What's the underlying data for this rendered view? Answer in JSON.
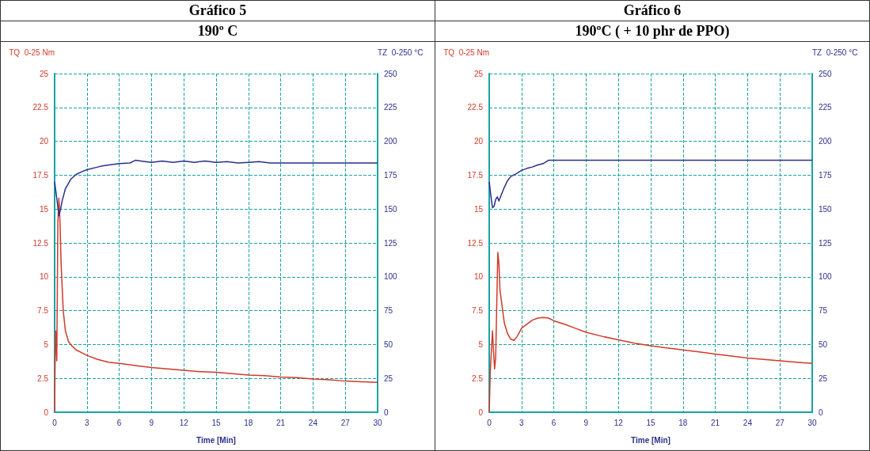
{
  "chart_data": [
    {
      "type": "line",
      "title": "Gráfico 5",
      "subtitle": "190º C",
      "xlabel": "Time [Min]",
      "ylabel": "TQ  0-25 Nm",
      "y2label": "TZ  0-250 °C",
      "xlim": [
        0,
        30
      ],
      "xticks": [
        0,
        3,
        6,
        9,
        12,
        15,
        18,
        21,
        24,
        27,
        30
      ],
      "ylim": [
        0,
        25
      ],
      "yticks": [
        0,
        2.5,
        5,
        7.5,
        10,
        12.5,
        15,
        17.5,
        20,
        22.5,
        25
      ],
      "y2lim": [
        0,
        250
      ],
      "y2ticks": [
        0,
        25,
        50,
        75,
        100,
        125,
        150,
        175,
        200,
        225,
        250
      ],
      "grid": true,
      "marker": "none",
      "line_style": "solid",
      "series": [
        {
          "color": "#d03a2a",
          "x": [
            0,
            0.05,
            0.1,
            0.2,
            0.3,
            0.4,
            0.5,
            0.6,
            0.8,
            1,
            1.3,
            1.6,
            2,
            2.5,
            3,
            4,
            5,
            6,
            7.5,
            9,
            10.5,
            12,
            13.5,
            15,
            16.5,
            18,
            19.5,
            21,
            22.5,
            24,
            25.5,
            27,
            28.5,
            30
          ],
          "values": [
            0,
            4,
            6,
            3.8,
            14,
            15.8,
            14,
            11,
            7.5,
            6,
            5.2,
            4.9,
            4.6,
            4.4,
            4.2,
            3.9,
            3.7,
            3.6,
            3.45,
            3.3,
            3.2,
            3.1,
            3.0,
            2.95,
            2.85,
            2.75,
            2.7,
            2.6,
            2.55,
            2.45,
            2.4,
            2.3,
            2.25,
            2.2
          ]
        },
        {
          "color": "#2a2f8a",
          "axis": "y2",
          "x": [
            0,
            0.2,
            0.4,
            0.5,
            0.7,
            1,
            1.5,
            2,
            2.5,
            3,
            4,
            4.5,
            6,
            7,
            7.5,
            8,
            9,
            10,
            11,
            12,
            13,
            14,
            15,
            16,
            17,
            18,
            19,
            20,
            22,
            25,
            30
          ],
          "values": [
            170,
            158,
            145,
            148,
            156,
            165,
            172,
            175.5,
            177.5,
            179,
            181,
            182,
            183.5,
            184,
            186,
            185.5,
            184.5,
            185.5,
            184.5,
            185.5,
            184.5,
            185.5,
            184.5,
            185,
            184,
            184.5,
            185,
            184,
            184,
            184,
            184
          ]
        }
      ]
    },
    {
      "type": "line",
      "title": "Gráfico 6",
      "subtitle": "190ºC ( + 10 phr de PPO)",
      "xlabel": "Time [Min]",
      "ylabel": "TQ  0-25 Nm",
      "y2label": "TZ  0-250 °C",
      "xlim": [
        0,
        30
      ],
      "xticks": [
        0,
        3,
        6,
        9,
        12,
        15,
        18,
        21,
        24,
        27,
        30
      ],
      "ylim": [
        0,
        25
      ],
      "yticks": [
        0,
        2.5,
        5,
        7.5,
        10,
        12.5,
        15,
        17.5,
        20,
        22.5,
        25
      ],
      "y2lim": [
        0,
        250
      ],
      "y2ticks": [
        0,
        25,
        50,
        75,
        100,
        125,
        150,
        175,
        200,
        225,
        250
      ],
      "grid": true,
      "marker": "none",
      "line_style": "solid",
      "series": [
        {
          "color": "#d03a2a",
          "x": [
            0,
            0.1,
            0.2,
            0.3,
            0.4,
            0.5,
            0.6,
            0.7,
            0.8,
            0.9,
            1,
            1.2,
            1.4,
            1.7,
            2,
            2.3,
            2.6,
            3,
            3.5,
            4,
            4.5,
            5,
            5.5,
            6,
            7,
            8,
            9,
            10.5,
            12,
            13.5,
            15,
            16.5,
            18,
            19.5,
            21,
            22.5,
            24,
            25.5,
            27,
            28.5,
            30
          ],
          "values": [
            0,
            3,
            4.5,
            6,
            4.5,
            3.2,
            4,
            8,
            11.8,
            11,
            9,
            7.8,
            6.6,
            5.8,
            5.4,
            5.3,
            5.6,
            6.2,
            6.5,
            6.8,
            6.95,
            7.0,
            6.95,
            6.75,
            6.5,
            6.2,
            5.9,
            5.6,
            5.35,
            5.1,
            4.9,
            4.75,
            4.6,
            4.45,
            4.3,
            4.15,
            4.0,
            3.9,
            3.8,
            3.7,
            3.6
          ]
        },
        {
          "color": "#2a2f8a",
          "axis": "y2",
          "x": [
            0,
            0.15,
            0.3,
            0.45,
            0.6,
            0.75,
            0.9,
            1.1,
            1.4,
            1.7,
            2,
            2.5,
            3,
            3.5,
            4,
            4.5,
            5,
            5.5,
            6,
            8,
            12,
            15,
            20,
            25,
            30
          ],
          "values": [
            170,
            160,
            151,
            152,
            157,
            159,
            156,
            160,
            166,
            171,
            174,
            176,
            178.5,
            180,
            181,
            182.5,
            183.5,
            186,
            186,
            186,
            186,
            186,
            186,
            186,
            186
          ]
        }
      ]
    }
  ]
}
